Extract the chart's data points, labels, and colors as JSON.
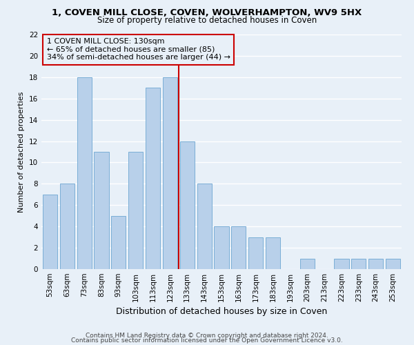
{
  "title": "1, COVEN MILL CLOSE, COVEN, WOLVERHAMPTON, WV9 5HX",
  "subtitle": "Size of property relative to detached houses in Coven",
  "xlabel": "Distribution of detached houses by size in Coven",
  "ylabel": "Number of detached properties",
  "bins": [
    "53sqm",
    "63sqm",
    "73sqm",
    "83sqm",
    "93sqm",
    "103sqm",
    "113sqm",
    "123sqm",
    "133sqm",
    "143sqm",
    "153sqm",
    "163sqm",
    "173sqm",
    "183sqm",
    "193sqm",
    "203sqm",
    "213sqm",
    "223sqm",
    "233sqm",
    "243sqm",
    "253sqm"
  ],
  "values": [
    7,
    8,
    18,
    11,
    5,
    11,
    17,
    18,
    12,
    8,
    4,
    4,
    3,
    3,
    0,
    1,
    0,
    1,
    1,
    1,
    1
  ],
  "bar_color": "#b8d0ea",
  "bar_edgecolor": "#7aaed6",
  "background_color": "#e8f0f8",
  "grid_color": "#ffffff",
  "vline_x": 7.5,
  "vline_color": "#cc0000",
  "annotation_text": "1 COVEN MILL CLOSE: 130sqm\n← 65% of detached houses are smaller (85)\n34% of semi-detached houses are larger (44) →",
  "annotation_box_color": "#cc0000",
  "ylim": [
    0,
    22
  ],
  "yticks": [
    0,
    2,
    4,
    6,
    8,
    10,
    12,
    14,
    16,
    18,
    20,
    22
  ],
  "footer1": "Contains HM Land Registry data © Crown copyright and database right 2024.",
  "footer2": "Contains public sector information licensed under the Open Government Licence v3.0.",
  "title_fontsize": 9.5,
  "subtitle_fontsize": 8.5,
  "ylabel_fontsize": 8,
  "xlabel_fontsize": 9,
  "tick_fontsize": 7.5,
  "annot_fontsize": 8,
  "footer_fontsize": 6.5
}
